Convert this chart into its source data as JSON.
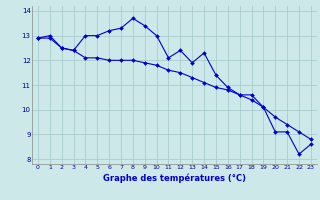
{
  "x": [
    0,
    1,
    2,
    3,
    4,
    5,
    6,
    7,
    8,
    9,
    10,
    11,
    12,
    13,
    14,
    15,
    16,
    17,
    18,
    19,
    20,
    21,
    22,
    23
  ],
  "line1": [
    12.9,
    13.0,
    12.5,
    12.4,
    13.0,
    13.0,
    13.2,
    13.3,
    13.7,
    13.4,
    13.0,
    12.1,
    12.4,
    11.9,
    12.3,
    11.4,
    10.9,
    10.6,
    10.6,
    10.1,
    9.1,
    9.1,
    8.2,
    8.6
  ],
  "line2": [
    12.9,
    12.9,
    12.5,
    12.4,
    12.1,
    12.1,
    12.0,
    12.0,
    12.0,
    11.9,
    11.8,
    11.6,
    11.5,
    11.3,
    11.1,
    10.9,
    10.8,
    10.6,
    10.4,
    10.1,
    9.7,
    9.4,
    9.1,
    8.8
  ],
  "line_color": "#0000cc",
  "bg_color": "#cce8e8",
  "grid_color": "#aacccc",
  "xlabel": "Graphe des températures (°C)",
  "ylim": [
    7.8,
    14.2
  ],
  "xlim": [
    -0.5,
    23.5
  ],
  "yticks": [
    8,
    9,
    10,
    11,
    12,
    13,
    14
  ],
  "xticks": [
    0,
    1,
    2,
    3,
    4,
    5,
    6,
    7,
    8,
    9,
    10,
    11,
    12,
    13,
    14,
    15,
    16,
    17,
    18,
    19,
    20,
    21,
    22,
    23
  ]
}
